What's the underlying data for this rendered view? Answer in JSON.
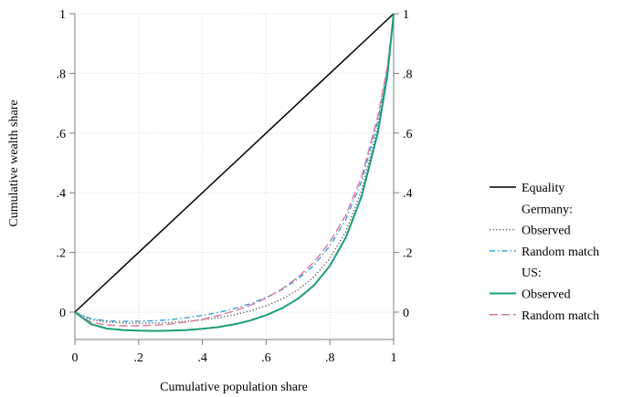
{
  "chart_data": {
    "type": "line",
    "xlabel": "Cumulative population share",
    "ylabel": "Cumulative wealth share",
    "xlim": [
      0,
      1
    ],
    "ylim": [
      -0.07,
      1
    ],
    "x_ticks": [
      "0",
      ".2",
      ".4",
      ".6",
      ".8",
      "1"
    ],
    "x_tick_values": [
      0,
      0.2,
      0.4,
      0.6,
      0.8,
      1
    ],
    "y_ticks": [
      "0",
      ".2",
      ".4",
      ".6",
      ".8",
      "1"
    ],
    "y_tick_values": [
      0,
      0.2,
      0.4,
      0.6,
      0.8,
      1
    ],
    "y_ticks_right": true,
    "grid": true,
    "legend_position": "right",
    "legend": [
      {
        "label": "Equality",
        "series": "equality"
      },
      {
        "label": "Germany:",
        "header": true
      },
      {
        "label": "Observed",
        "series": "germany_observed"
      },
      {
        "label": "Random match",
        "series": "germany_random"
      },
      {
        "label": "US:",
        "header": true
      },
      {
        "label": "Observed",
        "series": "us_observed"
      },
      {
        "label": "Random match",
        "series": "us_random"
      }
    ],
    "series": [
      {
        "id": "equality",
        "name": "Equality",
        "color": "#000000",
        "dash": "solid",
        "x": [
          0,
          1
        ],
        "y": [
          0,
          1
        ]
      },
      {
        "id": "germany_observed",
        "name": "Observed",
        "color": "#555555",
        "dash": "dotted",
        "x": [
          0,
          0.05,
          0.1,
          0.15,
          0.2,
          0.25,
          0.3,
          0.35,
          0.4,
          0.45,
          0.5,
          0.55,
          0.6,
          0.65,
          0.7,
          0.75,
          0.8,
          0.85,
          0.9,
          0.95,
          0.98,
          1
        ],
        "y": [
          0,
          -0.025,
          -0.033,
          -0.036,
          -0.037,
          -0.037,
          -0.035,
          -0.031,
          -0.026,
          -0.019,
          -0.009,
          0.004,
          0.021,
          0.044,
          0.075,
          0.118,
          0.18,
          0.27,
          0.41,
          0.62,
          0.8,
          1
        ]
      },
      {
        "id": "germany_random",
        "name": "Random match",
        "color": "#3b9fd9",
        "dash": "dashdot",
        "x": [
          0,
          0.05,
          0.1,
          0.15,
          0.2,
          0.25,
          0.3,
          0.35,
          0.4,
          0.45,
          0.5,
          0.55,
          0.6,
          0.65,
          0.7,
          0.75,
          0.8,
          0.85,
          0.9,
          0.95,
          0.98,
          1
        ],
        "y": [
          0,
          -0.022,
          -0.029,
          -0.031,
          -0.031,
          -0.029,
          -0.025,
          -0.019,
          -0.011,
          -0.001,
          0.012,
          0.028,
          0.049,
          0.076,
          0.111,
          0.157,
          0.222,
          0.31,
          0.44,
          0.64,
          0.81,
          1
        ]
      },
      {
        "id": "us_observed",
        "name": "Observed",
        "color": "#1a9e78",
        "dash": "solid",
        "x": [
          0,
          0.05,
          0.1,
          0.15,
          0.2,
          0.25,
          0.3,
          0.35,
          0.4,
          0.45,
          0.5,
          0.55,
          0.6,
          0.65,
          0.7,
          0.75,
          0.8,
          0.85,
          0.9,
          0.95,
          0.98,
          1
        ],
        "y": [
          0,
          -0.04,
          -0.055,
          -0.06,
          -0.062,
          -0.063,
          -0.062,
          -0.06,
          -0.056,
          -0.05,
          -0.041,
          -0.028,
          -0.01,
          0.013,
          0.045,
          0.09,
          0.155,
          0.25,
          0.39,
          0.6,
          0.79,
          1
        ]
      },
      {
        "id": "us_random",
        "name": "Random match",
        "color": "#d9789e",
        "dash": "longdash",
        "x": [
          0,
          0.05,
          0.1,
          0.15,
          0.2,
          0.25,
          0.3,
          0.35,
          0.4,
          0.45,
          0.5,
          0.55,
          0.6,
          0.65,
          0.7,
          0.75,
          0.8,
          0.85,
          0.9,
          0.95,
          0.98,
          1
        ],
        "y": [
          0,
          -0.034,
          -0.043,
          -0.046,
          -0.046,
          -0.044,
          -0.04,
          -0.033,
          -0.024,
          -0.012,
          0.004,
          0.023,
          0.047,
          0.078,
          0.117,
          0.168,
          0.235,
          0.325,
          0.455,
          0.655,
          0.82,
          1
        ]
      }
    ]
  }
}
